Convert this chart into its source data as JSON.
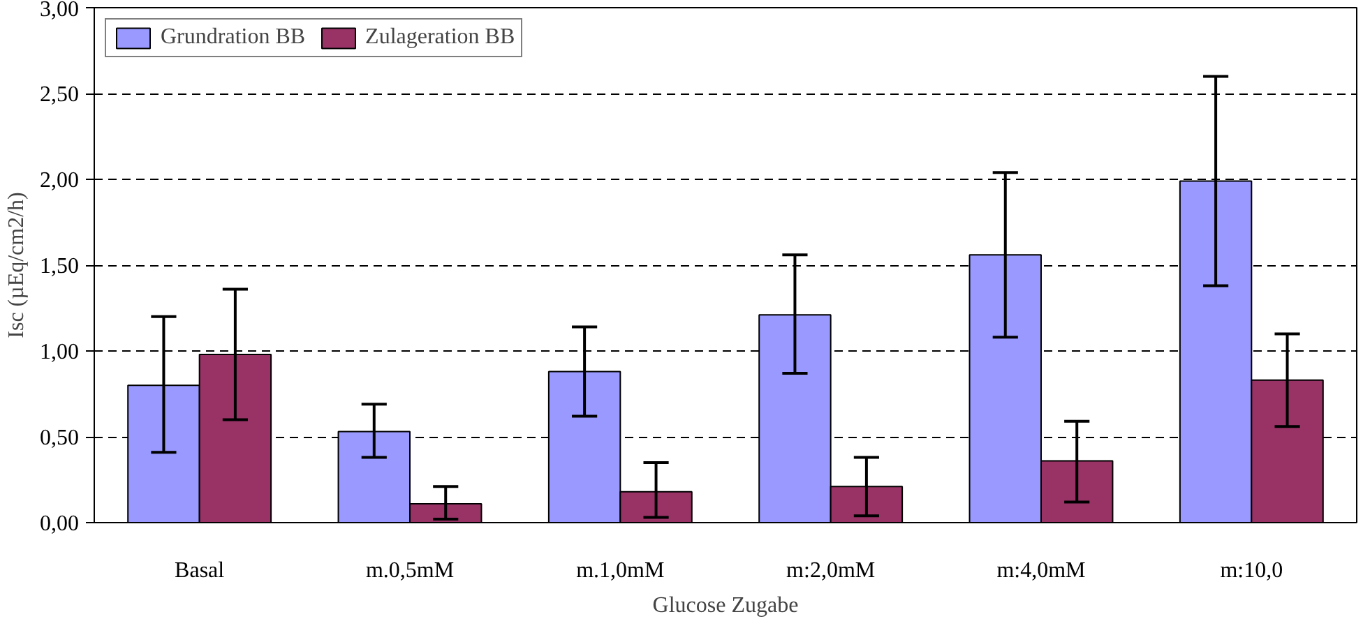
{
  "chart_data": {
    "type": "bar",
    "xlabel": "Glucose Zugabe",
    "ylabel": "Isc (µEq/cm2/h)",
    "categories": [
      "Basal",
      "m.0,5mM",
      "m.1,0mM",
      "m:2,0mM",
      "m:4,0mM",
      "m:10,0"
    ],
    "series": [
      {
        "name": "Grundration BB",
        "color": "#9999ff",
        "values": [
          0.8,
          0.53,
          0.88,
          1.21,
          1.56,
          1.99
        ],
        "errors": [
          [
            0.41,
            1.2
          ],
          [
            0.38,
            0.69
          ],
          [
            0.62,
            1.14
          ],
          [
            0.87,
            1.56
          ],
          [
            1.08,
            2.04
          ],
          [
            1.38,
            2.6
          ]
        ]
      },
      {
        "name": "Zulageration BB",
        "color": "#993366",
        "values": [
          0.98,
          0.11,
          0.18,
          0.21,
          0.36,
          0.83
        ],
        "errors": [
          [
            0.6,
            1.36
          ],
          [
            0.02,
            0.21
          ],
          [
            0.03,
            0.35
          ],
          [
            0.04,
            0.38
          ],
          [
            0.12,
            0.59
          ],
          [
            0.56,
            1.1
          ]
        ]
      }
    ],
    "ylim": [
      0,
      3
    ],
    "yticks": [
      {
        "value": 0,
        "label": "0,00"
      },
      {
        "value": 0.5,
        "label": "0,50"
      },
      {
        "value": 1,
        "label": "1,00"
      },
      {
        "value": 1.5,
        "label": "1,50"
      },
      {
        "value": 2,
        "label": "2,00"
      },
      {
        "value": 2.5,
        "label": "2,50"
      },
      {
        "value": 3,
        "label": "3,00"
      }
    ],
    "grid": "y",
    "legend": "top left"
  }
}
